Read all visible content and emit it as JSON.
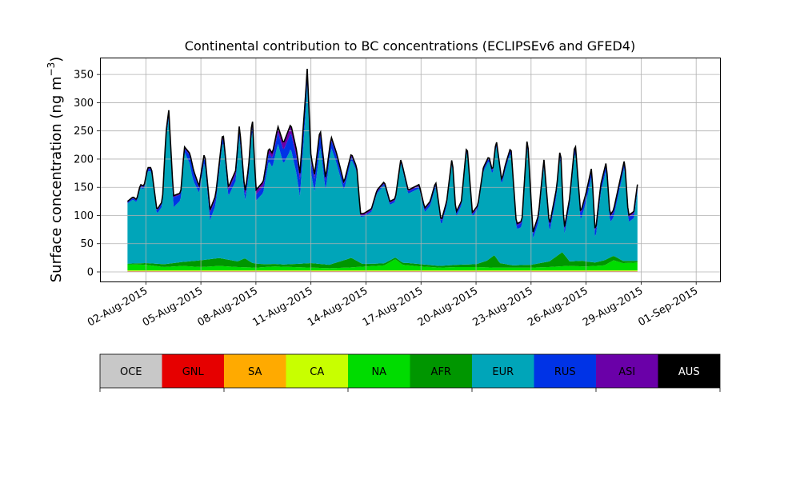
{
  "chart_data": {
    "type": "area",
    "stacked": true,
    "title": "Continental contribution to BC concentrations (ECLIPSEv6 and GFED4)",
    "ylabel_main": "Surface concentration (ng m",
    "ylabel_sup": "−3",
    "ylabel_close": ")",
    "ylim": [
      -17,
      380
    ],
    "yticks": [
      0,
      50,
      100,
      150,
      200,
      250,
      300,
      350
    ],
    "x_start": "2015-07-31",
    "x_end": "2015-09-01",
    "x_domain_days": [
      -1.5,
      32.3
    ],
    "xticks": [
      {
        "day": 1,
        "label": "02-Aug-2015"
      },
      {
        "day": 4,
        "label": "05-Aug-2015"
      },
      {
        "day": 7,
        "label": "08-Aug-2015"
      },
      {
        "day": 10,
        "label": "11-Aug-2015"
      },
      {
        "day": 13,
        "label": "14-Aug-2015"
      },
      {
        "day": 16,
        "label": "17-Aug-2015"
      },
      {
        "day": 19,
        "label": "20-Aug-2015"
      },
      {
        "day": 22,
        "label": "23-Aug-2015"
      },
      {
        "day": 25,
        "label": "26-Aug-2015"
      },
      {
        "day": 28,
        "label": "29-Aug-2015"
      },
      {
        "day": 31,
        "label": "01-Sep-2015"
      }
    ],
    "grid": true,
    "total_keypoints": [
      [
        0,
        125
      ],
      [
        0.3,
        133
      ],
      [
        0.5,
        128
      ],
      [
        0.7,
        155
      ],
      [
        0.9,
        152
      ],
      [
        1.1,
        185
      ],
      [
        1.3,
        185
      ],
      [
        1.6,
        110
      ],
      [
        1.9,
        125
      ],
      [
        2.1,
        248
      ],
      [
        2.25,
        287
      ],
      [
        2.5,
        135
      ],
      [
        2.9,
        140
      ],
      [
        3.1,
        222
      ],
      [
        3.4,
        210
      ],
      [
        3.6,
        180
      ],
      [
        3.9,
        152
      ],
      [
        4.2,
        213
      ],
      [
        4.5,
        110
      ],
      [
        4.8,
        135
      ],
      [
        5.2,
        250
      ],
      [
        5.5,
        150
      ],
      [
        5.9,
        180
      ],
      [
        6.1,
        262
      ],
      [
        6.4,
        140
      ],
      [
        6.6,
        185
      ],
      [
        6.8,
        278
      ],
      [
        7.0,
        145
      ],
      [
        7.4,
        160
      ],
      [
        7.7,
        220
      ],
      [
        7.9,
        210
      ],
      [
        8.2,
        258
      ],
      [
        8.5,
        228
      ],
      [
        8.9,
        262
      ],
      [
        9.2,
        218
      ],
      [
        9.4,
        175
      ],
      [
        9.7,
        310
      ],
      [
        9.8,
        362
      ],
      [
        10.0,
        205
      ],
      [
        10.2,
        172
      ],
      [
        10.5,
        255
      ],
      [
        10.8,
        165
      ],
      [
        11.1,
        240
      ],
      [
        11.4,
        210
      ],
      [
        11.8,
        158
      ],
      [
        12.2,
        210
      ],
      [
        12.5,
        185
      ],
      [
        12.7,
        103
      ],
      [
        12.9,
        104
      ],
      [
        13.3,
        112
      ],
      [
        13.6,
        145
      ],
      [
        14.0,
        160
      ],
      [
        14.3,
        125
      ],
      [
        14.6,
        130
      ],
      [
        14.9,
        200
      ],
      [
        15.3,
        145
      ],
      [
        15.6,
        150
      ],
      [
        15.9,
        155
      ],
      [
        16.2,
        113
      ],
      [
        16.5,
        125
      ],
      [
        16.8,
        160
      ],
      [
        17.1,
        90
      ],
      [
        17.4,
        125
      ],
      [
        17.7,
        205
      ],
      [
        17.9,
        105
      ],
      [
        18.2,
        125
      ],
      [
        18.5,
        228
      ],
      [
        18.8,
        105
      ],
      [
        19.1,
        118
      ],
      [
        19.4,
        185
      ],
      [
        19.7,
        205
      ],
      [
        19.9,
        178
      ],
      [
        20.1,
        235
      ],
      [
        20.4,
        162
      ],
      [
        20.6,
        190
      ],
      [
        20.9,
        222
      ],
      [
        21.2,
        85
      ],
      [
        21.5,
        90
      ],
      [
        21.8,
        243
      ],
      [
        22.1,
        70
      ],
      [
        22.4,
        100
      ],
      [
        22.7,
        200
      ],
      [
        23.0,
        82
      ],
      [
        23.4,
        150
      ],
      [
        23.6,
        225
      ],
      [
        23.8,
        75
      ],
      [
        24.1,
        130
      ],
      [
        24.4,
        232
      ],
      [
        24.7,
        105
      ],
      [
        25.0,
        140
      ],
      [
        25.3,
        185
      ],
      [
        25.5,
        68
      ],
      [
        25.8,
        155
      ],
      [
        26.1,
        195
      ],
      [
        26.3,
        100
      ],
      [
        26.5,
        110
      ],
      [
        26.8,
        155
      ],
      [
        27.1,
        200
      ],
      [
        27.3,
        100
      ],
      [
        27.6,
        107
      ],
      [
        27.8,
        155
      ]
    ],
    "stack_order": [
      "OCE",
      "GNL",
      "SA",
      "CA",
      "NA",
      "AFR",
      "EUR",
      "RUS",
      "ASI",
      "AUS"
    ],
    "series": [
      {
        "name": "OCE",
        "color": "#c8c8c8",
        "values": [
          [
            0,
            0.6
          ],
          [
            27.8,
            0.6
          ]
        ]
      },
      {
        "name": "GNL",
        "color": "#e60000",
        "values": [
          [
            0,
            0.4
          ],
          [
            27.8,
            0.4
          ]
        ]
      },
      {
        "name": "SA",
        "color": "#ffaa00",
        "values": [
          [
            0,
            0.6
          ],
          [
            27.8,
            0.6
          ]
        ]
      },
      {
        "name": "CA",
        "color": "#c8ff00",
        "values": [
          [
            0,
            1.0
          ],
          [
            27.8,
            1.0
          ]
        ]
      },
      {
        "name": "NA",
        "color": "#00dc00",
        "values": [
          [
            0,
            11
          ],
          [
            1,
            10
          ],
          [
            2,
            6
          ],
          [
            3,
            8
          ],
          [
            4,
            6
          ],
          [
            5,
            8
          ],
          [
            6,
            6
          ],
          [
            7,
            5
          ],
          [
            8,
            7
          ],
          [
            9,
            6
          ],
          [
            10,
            5
          ],
          [
            11,
            4
          ],
          [
            12,
            5
          ],
          [
            13,
            7
          ],
          [
            14,
            9
          ],
          [
            14.6,
            20
          ],
          [
            15,
            10
          ],
          [
            16,
            7
          ],
          [
            17,
            5
          ],
          [
            18,
            6
          ],
          [
            19,
            6
          ],
          [
            20,
            5
          ],
          [
            21,
            5
          ],
          [
            22,
            5
          ],
          [
            23,
            6
          ],
          [
            24,
            8
          ],
          [
            25,
            7
          ],
          [
            26,
            9
          ],
          [
            26.5,
            18
          ],
          [
            27,
            13
          ],
          [
            27.8,
            14
          ]
        ]
      },
      {
        "name": "AFR",
        "color": "#009600",
        "values": [
          [
            0,
            1
          ],
          [
            1,
            3
          ],
          [
            2,
            5
          ],
          [
            3,
            7
          ],
          [
            4,
            12
          ],
          [
            5,
            14
          ],
          [
            6,
            10
          ],
          [
            6.4,
            16
          ],
          [
            6.8,
            8
          ],
          [
            7.5,
            5
          ],
          [
            8.5,
            4
          ],
          [
            9.3,
            6
          ],
          [
            10,
            8
          ],
          [
            11,
            6
          ],
          [
            12.2,
            17
          ],
          [
            12.8,
            5
          ],
          [
            13.5,
            4
          ],
          [
            14.6,
            3
          ],
          [
            15.3,
            4
          ],
          [
            16,
            4
          ],
          [
            17,
            3
          ],
          [
            18,
            4
          ],
          [
            19,
            5
          ],
          [
            19.6,
            12
          ],
          [
            20,
            22
          ],
          [
            20.3,
            8
          ],
          [
            21,
            4
          ],
          [
            22,
            5
          ],
          [
            23,
            10
          ],
          [
            23.7,
            25
          ],
          [
            24.1,
            8
          ],
          [
            24.8,
            10
          ],
          [
            25.5,
            6
          ],
          [
            26,
            9
          ],
          [
            26.5,
            8
          ],
          [
            27,
            4
          ],
          [
            27.8,
            3
          ]
        ]
      },
      {
        "name": "EUR",
        "color": "#00a5b9",
        "values": "residual"
      },
      {
        "name": "RUS",
        "color": "#0033e6",
        "values": [
          [
            0,
            2
          ],
          [
            2,
            6
          ],
          [
            2.5,
            18
          ],
          [
            3.1,
            6
          ],
          [
            3.5,
            18
          ],
          [
            3.9,
            8
          ],
          [
            4.5,
            14
          ],
          [
            5.2,
            8
          ],
          [
            5.9,
            12
          ],
          [
            6.5,
            10
          ],
          [
            7.5,
            12
          ],
          [
            8.2,
            20
          ],
          [
            8.8,
            28
          ],
          [
            9.4,
            30
          ],
          [
            9.8,
            18
          ],
          [
            10.4,
            25
          ],
          [
            10.8,
            15
          ],
          [
            11.5,
            12
          ],
          [
            12,
            8
          ],
          [
            12.7,
            2
          ],
          [
            14,
            3
          ],
          [
            16,
            4
          ],
          [
            17,
            6
          ],
          [
            19,
            4
          ],
          [
            21,
            6
          ],
          [
            22,
            8
          ],
          [
            23,
            10
          ],
          [
            24,
            8
          ],
          [
            25,
            12
          ],
          [
            26,
            10
          ],
          [
            27,
            8
          ],
          [
            27.8,
            8
          ]
        ]
      },
      {
        "name": "ASI",
        "color": "#6a00a8",
        "values": [
          [
            0,
            1
          ],
          [
            3,
            2
          ],
          [
            6,
            6
          ],
          [
            8,
            8
          ],
          [
            8.8,
            14
          ],
          [
            9.5,
            10
          ],
          [
            10.5,
            6
          ],
          [
            12,
            3
          ],
          [
            14,
            2
          ],
          [
            20,
            2
          ],
          [
            24,
            3
          ],
          [
            27.8,
            3
          ]
        ]
      },
      {
        "name": "AUS",
        "color": "#000000",
        "values": [
          [
            0,
            0.8
          ],
          [
            27.8,
            0.8
          ]
        ]
      }
    ],
    "legend": {
      "placement": "bottom",
      "items": [
        {
          "label": "OCE",
          "color": "#c8c8c8"
        },
        {
          "label": "GNL",
          "color": "#e60000"
        },
        {
          "label": "SA",
          "color": "#ffaa00"
        },
        {
          "label": "CA",
          "color": "#c8ff00"
        },
        {
          "label": "NA",
          "color": "#00dc00"
        },
        {
          "label": "AFR",
          "color": "#009600"
        },
        {
          "label": "EUR",
          "color": "#00a5b9"
        },
        {
          "label": "RUS",
          "color": "#0033e6"
        },
        {
          "label": "ASI",
          "color": "#6a00a8"
        },
        {
          "label": "AUS",
          "color": "#000000"
        }
      ]
    }
  }
}
